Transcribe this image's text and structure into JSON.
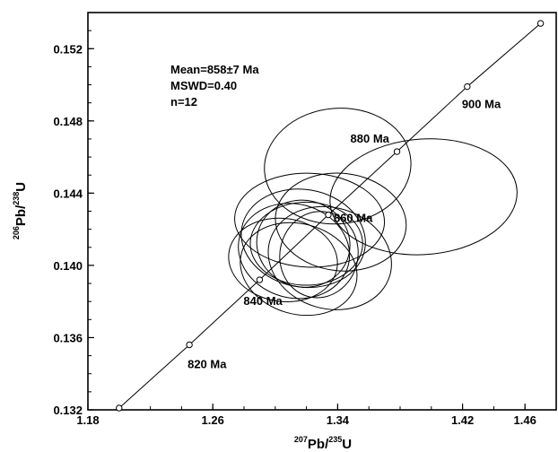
{
  "chart_data": {
    "type": "scatter",
    "title": "",
    "xlabel": {
      "sup": "207",
      "main": "Pb/",
      "sup2": "235",
      "end": "U"
    },
    "ylabel": {
      "sup": "206",
      "main": "Pb/",
      "sup2": "238",
      "end": "U"
    },
    "xlim": [
      1.18,
      1.48
    ],
    "ylim": [
      0.132,
      0.154
    ],
    "xticks": [
      "1.18",
      "1.26",
      "1.34",
      "1.42",
      "1.46"
    ],
    "xtick_values": [
      1.18,
      1.26,
      1.34,
      1.42,
      1.46
    ],
    "yticks": [
      "0.132",
      "0.136",
      "0.140",
      "0.144",
      "0.148",
      "0.152"
    ],
    "ytick_values": [
      0.132,
      0.136,
      0.14,
      0.144,
      0.148,
      0.152
    ],
    "summary": [
      "Mean=858±7 Ma",
      "MSWD=0.40",
      "n=12"
    ],
    "concordia": [
      {
        "x": 1.2,
        "y": 0.1321,
        "label": ""
      },
      {
        "x": 1.245,
        "y": 0.1356,
        "label": "820 Ma"
      },
      {
        "x": 1.29,
        "y": 0.1392,
        "label": "840 Ma"
      },
      {
        "x": 1.334,
        "y": 0.1428,
        "label": "860 Ma"
      },
      {
        "x": 1.378,
        "y": 0.1463,
        "label": "880 Ma"
      },
      {
        "x": 1.423,
        "y": 0.1499,
        "label": "900 Ma"
      },
      {
        "x": 1.47,
        "y": 0.1534,
        "label": ""
      }
    ],
    "ellipses": [
      {
        "x": 1.34,
        "y": 0.1455,
        "rx": 0.047,
        "ry": 0.0032,
        "angle": -5
      },
      {
        "x": 1.395,
        "y": 0.1438,
        "rx": 0.06,
        "ry": 0.0032,
        "angle": -4
      },
      {
        "x": 1.322,
        "y": 0.1425,
        "rx": 0.048,
        "ry": 0.0026,
        "angle": 2
      },
      {
        "x": 1.342,
        "y": 0.1424,
        "rx": 0.042,
        "ry": 0.0027,
        "angle": 6
      },
      {
        "x": 1.318,
        "y": 0.1415,
        "rx": 0.04,
        "ry": 0.0027,
        "angle": 10
      },
      {
        "x": 1.312,
        "y": 0.1408,
        "rx": 0.036,
        "ry": 0.0026,
        "angle": 15
      },
      {
        "x": 1.318,
        "y": 0.1412,
        "rx": 0.03,
        "ry": 0.0024,
        "angle": 14
      },
      {
        "x": 1.328,
        "y": 0.1406,
        "rx": 0.025,
        "ry": 0.0024,
        "angle": 12
      },
      {
        "x": 1.305,
        "y": 0.1403,
        "rx": 0.035,
        "ry": 0.0023,
        "angle": 8
      },
      {
        "x": 1.315,
        "y": 0.1398,
        "rx": 0.038,
        "ry": 0.0025,
        "angle": 16
      },
      {
        "x": 1.32,
        "y": 0.1412,
        "rx": 0.036,
        "ry": 0.0023,
        "angle": 0
      },
      {
        "x": 1.335,
        "y": 0.1404,
        "rx": 0.04,
        "ry": 0.0028,
        "angle": 16
      }
    ]
  }
}
